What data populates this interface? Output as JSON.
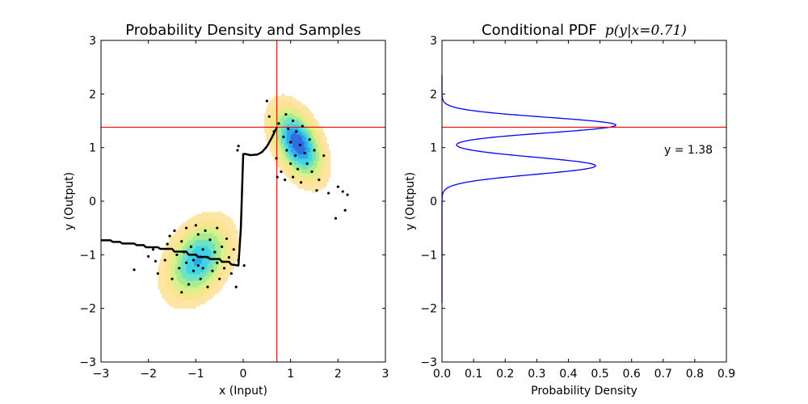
{
  "chart_data": [
    {
      "type": "scatter",
      "title": "Probability Density and Samples",
      "xlabel": "x (Input)",
      "ylabel": "y (Output)",
      "xlim": [
        -3,
        3
      ],
      "ylim": [
        -3,
        3
      ],
      "xticks": [
        "−3",
        "−2",
        "−1",
        "0",
        "1",
        "2",
        "3"
      ],
      "yticks": [
        "−3",
        "−2",
        "−1",
        "0",
        "1",
        "2",
        "3"
      ],
      "density_contours": {
        "levels": [
          "#fde6a5",
          "#fbe490",
          "#d9f08c",
          "#a8ec8e",
          "#6fe2c4",
          "#3ed4e6",
          "#2fa7ea",
          "#2f6ee0"
        ],
        "components": [
          {
            "cx": -0.95,
            "cy": -1.1,
            "sx": 0.42,
            "sy": 0.45,
            "rho": 0.35,
            "weight": 0.8
          },
          {
            "cx": 1.15,
            "cy": 1.08,
            "sx": 0.33,
            "sy": 0.42,
            "rho": -0.45,
            "weight": 1.0
          }
        ]
      },
      "samples": [
        [
          -2.3,
          -1.28
        ],
        [
          -2.0,
          -1.03
        ],
        [
          -1.9,
          -0.9
        ],
        [
          -1.85,
          -1.12
        ],
        [
          -1.8,
          -1.35
        ],
        [
          -1.65,
          -1.1
        ],
        [
          -1.6,
          -0.8
        ],
        [
          -1.55,
          -0.65
        ],
        [
          -1.5,
          -1.45
        ],
        [
          -1.45,
          -0.55
        ],
        [
          -1.4,
          -1.0
        ],
        [
          -1.35,
          -1.25
        ],
        [
          -1.3,
          -0.75
        ],
        [
          -1.3,
          -1.7
        ],
        [
          -1.25,
          -0.95
        ],
        [
          -1.2,
          -1.15
        ],
        [
          -1.2,
          -0.5
        ],
        [
          -1.15,
          -1.55
        ],
        [
          -1.1,
          -0.85
        ],
        [
          -1.05,
          -1.3
        ],
        [
          -1.05,
          -1.1
        ],
        [
          -1.0,
          -0.45
        ],
        [
          -1.0,
          -1.0
        ],
        [
          -0.95,
          -0.62
        ],
        [
          -0.95,
          -1.2
        ],
        [
          -0.9,
          -1.45
        ],
        [
          -0.85,
          -0.9
        ],
        [
          -0.85,
          -1.25
        ],
        [
          -0.8,
          -0.55
        ],
        [
          -0.75,
          -1.05
        ],
        [
          -0.75,
          -1.6
        ],
        [
          -0.7,
          -0.72
        ],
        [
          -0.65,
          -1.3
        ],
        [
          -0.6,
          -0.95
        ],
        [
          -0.55,
          -0.5
        ],
        [
          -0.55,
          -1.15
        ],
        [
          -0.5,
          -1.45
        ],
        [
          -0.45,
          -0.85
        ],
        [
          -0.4,
          -1.25
        ],
        [
          -0.35,
          -0.7
        ],
        [
          -0.3,
          -1.05
        ],
        [
          -0.25,
          -1.35
        ],
        [
          -0.2,
          -0.9
        ],
        [
          -0.15,
          -1.6
        ],
        [
          -0.1,
          -1.1
        ],
        [
          -0.12,
          0.95
        ],
        [
          -0.1,
          1.03
        ],
        [
          0.02,
          -1.2
        ],
        [
          0.5,
          1.87
        ],
        [
          0.55,
          1.58
        ],
        [
          0.65,
          1.3
        ],
        [
          0.7,
          0.8
        ],
        [
          0.72,
          0.45
        ],
        [
          0.75,
          1.45
        ],
        [
          0.8,
          0.55
        ],
        [
          0.85,
          1.2
        ],
        [
          0.88,
          0.4
        ],
        [
          0.9,
          1.62
        ],
        [
          0.92,
          0.95
        ],
        [
          0.95,
          1.35
        ],
        [
          1.0,
          0.7
        ],
        [
          1.0,
          1.1
        ],
        [
          1.05,
          0.45
        ],
        [
          1.05,
          1.5
        ],
        [
          1.1,
          0.85
        ],
        [
          1.12,
          1.3
        ],
        [
          1.15,
          0.6
        ],
        [
          1.2,
          1.05
        ],
        [
          1.22,
          0.35
        ],
        [
          1.25,
          1.4
        ],
        [
          1.3,
          0.9
        ],
        [
          1.35,
          0.7
        ],
        [
          1.4,
          1.15
        ],
        [
          1.45,
          0.55
        ],
        [
          1.5,
          0.95
        ],
        [
          1.55,
          0.2
        ],
        [
          1.6,
          0.4
        ],
        [
          1.7,
          0.85
        ],
        [
          1.8,
          0.15
        ],
        [
          1.95,
          -0.32
        ],
        [
          2.0,
          0.27
        ],
        [
          2.1,
          0.18
        ],
        [
          2.15,
          -0.17
        ],
        [
          2.2,
          0.12
        ]
      ],
      "mode_curve": [
        [
          -3.0,
          -0.73
        ],
        [
          -2.8,
          -0.73
        ],
        [
          -2.75,
          -0.76
        ],
        [
          -2.6,
          -0.76
        ],
        [
          -2.55,
          -0.79
        ],
        [
          -2.3,
          -0.79
        ],
        [
          -2.25,
          -0.82
        ],
        [
          -2.1,
          -0.82
        ],
        [
          -2.05,
          -0.86
        ],
        [
          -1.8,
          -0.86
        ],
        [
          -1.75,
          -0.89
        ],
        [
          -1.5,
          -0.89
        ],
        [
          -1.45,
          -0.94
        ],
        [
          -1.2,
          -0.94
        ],
        [
          -1.15,
          -1.0
        ],
        [
          -1.0,
          -1.0
        ],
        [
          -0.95,
          -1.04
        ],
        [
          -0.75,
          -1.04
        ],
        [
          -0.7,
          -1.08
        ],
        [
          -0.5,
          -1.08
        ],
        [
          -0.45,
          -1.13
        ],
        [
          -0.3,
          -1.13
        ],
        [
          -0.25,
          -1.18
        ],
        [
          -0.1,
          -1.2
        ],
        [
          -0.05,
          -0.5
        ],
        [
          0.0,
          0.88
        ],
        [
          0.05,
          0.88
        ],
        [
          0.15,
          0.86
        ],
        [
          0.3,
          0.87
        ],
        [
          0.4,
          0.92
        ],
        [
          0.5,
          1.02
        ],
        [
          0.6,
          1.18
        ],
        [
          0.71,
          1.38
        ]
      ],
      "crosshair": {
        "x": 0.71,
        "y": 1.38
      }
    },
    {
      "type": "line",
      "title": "Conditional PDF",
      "title_math": "p(y|x=0.71)",
      "xlabel": "Probability Density",
      "ylabel": "y (Output)",
      "xlim": [
        0.0,
        0.9
      ],
      "ylim": [
        -3,
        3
      ],
      "xticks": [
        "0.0",
        "0.1",
        "0.2",
        "0.3",
        "0.4",
        "0.5",
        "0.6",
        "0.7",
        "0.8",
        "0.9"
      ],
      "yticks": [
        "−3",
        "−2",
        "−1",
        "0",
        "1",
        "2",
        "3"
      ],
      "pdf_components": [
        {
          "mu": 0.66,
          "sigma": 0.16,
          "weight": 0.195
        },
        {
          "mu": 1.42,
          "sigma": 0.145,
          "weight": 0.2
        }
      ],
      "y_marker": 1.38,
      "annotation": "y = 1.38"
    }
  ],
  "colors": {
    "curve": "#0000ff",
    "crosshair": "#ff0000",
    "samples": "#000000",
    "mode_line": "#000000"
  }
}
